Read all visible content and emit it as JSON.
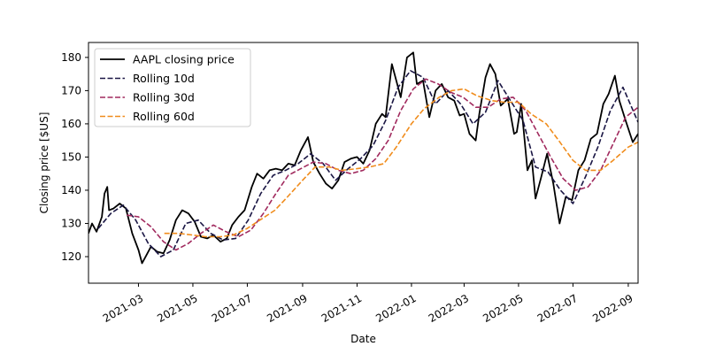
{
  "chart_data": {
    "type": "line",
    "title": "",
    "xlabel": "Date",
    "ylabel": "Closing price [$US]",
    "x_ticks": [
      "2021-03",
      "2021-05",
      "2021-07",
      "2021-09",
      "2021-11",
      "2022-01",
      "2022-03",
      "2022-05",
      "2022-07",
      "2022-09"
    ],
    "y_ticks": [
      120,
      130,
      140,
      150,
      160,
      170,
      180
    ],
    "xlim": [
      "2021-01-04",
      "2022-09-12"
    ],
    "ylim": [
      112,
      184.5
    ],
    "grid": false,
    "legend_position": "upper-left",
    "series": [
      {
        "name": "AAPL closing price",
        "color": "#000000",
        "style": "solid",
        "points": [
          [
            "2021-01-04",
            127.0
          ],
          [
            "2021-01-08",
            130.0
          ],
          [
            "2021-01-13",
            127.5
          ],
          [
            "2021-01-19",
            132.0
          ],
          [
            "2021-01-22",
            139.0
          ],
          [
            "2021-01-25",
            141.0
          ],
          [
            "2021-01-27",
            134.0
          ],
          [
            "2021-02-01",
            134.5
          ],
          [
            "2021-02-08",
            136.0
          ],
          [
            "2021-02-15",
            134.5
          ],
          [
            "2021-02-22",
            127.0
          ],
          [
            "2021-03-01",
            122.0
          ],
          [
            "2021-03-05",
            118.0
          ],
          [
            "2021-03-08",
            119.5
          ],
          [
            "2021-03-15",
            123.0
          ],
          [
            "2021-03-22",
            121.5
          ],
          [
            "2021-03-29",
            121.0
          ],
          [
            "2021-04-05",
            125.0
          ],
          [
            "2021-04-12",
            131.0
          ],
          [
            "2021-04-19",
            134.0
          ],
          [
            "2021-04-26",
            133.0
          ],
          [
            "2021-05-03",
            130.5
          ],
          [
            "2021-05-10",
            126.0
          ],
          [
            "2021-05-17",
            125.5
          ],
          [
            "2021-05-24",
            126.5
          ],
          [
            "2021-06-01",
            124.5
          ],
          [
            "2021-06-08",
            125.5
          ],
          [
            "2021-06-14",
            129.5
          ],
          [
            "2021-06-21",
            132.0
          ],
          [
            "2021-06-28",
            134.0
          ],
          [
            "2021-07-06",
            141.0
          ],
          [
            "2021-07-12",
            145.0
          ],
          [
            "2021-07-19",
            143.5
          ],
          [
            "2021-07-26",
            146.0
          ],
          [
            "2021-08-02",
            146.5
          ],
          [
            "2021-08-09",
            146.0
          ],
          [
            "2021-08-16",
            148.0
          ],
          [
            "2021-08-23",
            147.5
          ],
          [
            "2021-08-30",
            152.0
          ],
          [
            "2021-09-07",
            156.0
          ],
          [
            "2021-09-13",
            148.5
          ],
          [
            "2021-09-20",
            145.0
          ],
          [
            "2021-09-27",
            142.0
          ],
          [
            "2021-10-04",
            140.5
          ],
          [
            "2021-10-11",
            143.0
          ],
          [
            "2021-10-18",
            148.5
          ],
          [
            "2021-10-25",
            149.5
          ],
          [
            "2021-11-01",
            150.0
          ],
          [
            "2021-11-08",
            148.0
          ],
          [
            "2021-11-15",
            152.0
          ],
          [
            "2021-11-22",
            160.0
          ],
          [
            "2021-11-29",
            163.0
          ],
          [
            "2021-12-03",
            162.0
          ],
          [
            "2021-12-10",
            178.0
          ],
          [
            "2021-12-16",
            172.0
          ],
          [
            "2021-12-20",
            168.0
          ],
          [
            "2021-12-27",
            180.0
          ],
          [
            "2022-01-03",
            181.5
          ],
          [
            "2022-01-07",
            172.0
          ],
          [
            "2022-01-14",
            173.0
          ],
          [
            "2022-01-21",
            162.0
          ],
          [
            "2022-01-28",
            170.0
          ],
          [
            "2022-02-04",
            172.0
          ],
          [
            "2022-02-11",
            168.0
          ],
          [
            "2022-02-18",
            167.0
          ],
          [
            "2022-02-24",
            162.5
          ],
          [
            "2022-03-01",
            163.0
          ],
          [
            "2022-03-07",
            157.0
          ],
          [
            "2022-03-14",
            155.0
          ],
          [
            "2022-03-18",
            163.0
          ],
          [
            "2022-03-25",
            174.0
          ],
          [
            "2022-03-30",
            178.0
          ],
          [
            "2022-04-05",
            175.0
          ],
          [
            "2022-04-11",
            165.5
          ],
          [
            "2022-04-19",
            167.5
          ],
          [
            "2022-04-26",
            157.0
          ],
          [
            "2022-04-29",
            157.5
          ],
          [
            "2022-05-04",
            166.0
          ],
          [
            "2022-05-11",
            146.0
          ],
          [
            "2022-05-16",
            149.0
          ],
          [
            "2022-05-20",
            137.5
          ],
          [
            "2022-05-26",
            143.5
          ],
          [
            "2022-06-02",
            151.0
          ],
          [
            "2022-06-09",
            142.0
          ],
          [
            "2022-06-16",
            130.0
          ],
          [
            "2022-06-23",
            138.0
          ],
          [
            "2022-06-30",
            137.0
          ],
          [
            "2022-07-07",
            146.0
          ],
          [
            "2022-07-14",
            149.0
          ],
          [
            "2022-07-21",
            155.5
          ],
          [
            "2022-07-28",
            157.0
          ],
          [
            "2022-08-04",
            166.0
          ],
          [
            "2022-08-10",
            169.0
          ],
          [
            "2022-08-17",
            174.5
          ],
          [
            "2022-08-22",
            167.0
          ],
          [
            "2022-08-29",
            161.0
          ],
          [
            "2022-09-06",
            154.5
          ],
          [
            "2022-09-12",
            157.0
          ]
        ]
      },
      {
        "name": "Rolling 10d",
        "color": "#1a1644",
        "style": "dashed",
        "points": [
          [
            "2021-01-15",
            128.5
          ],
          [
            "2021-01-29",
            133.0
          ],
          [
            "2021-02-12",
            135.5
          ],
          [
            "2021-02-26",
            131.0
          ],
          [
            "2021-03-12",
            124.0
          ],
          [
            "2021-03-26",
            120.0
          ],
          [
            "2021-04-09",
            122.0
          ],
          [
            "2021-04-23",
            130.0
          ],
          [
            "2021-05-07",
            131.0
          ],
          [
            "2021-05-21",
            127.0
          ],
          [
            "2021-06-04",
            125.0
          ],
          [
            "2021-06-18",
            125.5
          ],
          [
            "2021-07-02",
            131.0
          ],
          [
            "2021-07-16",
            139.0
          ],
          [
            "2021-07-30",
            144.5
          ],
          [
            "2021-08-13",
            146.0
          ],
          [
            "2021-08-27",
            148.0
          ],
          [
            "2021-09-10",
            151.0
          ],
          [
            "2021-09-24",
            148.0
          ],
          [
            "2021-10-08",
            143.0
          ],
          [
            "2021-10-22",
            146.5
          ],
          [
            "2021-11-05",
            149.5
          ],
          [
            "2021-11-19",
            153.5
          ],
          [
            "2021-12-03",
            161.0
          ],
          [
            "2021-12-17",
            171.0
          ],
          [
            "2021-12-31",
            176.0
          ],
          [
            "2022-01-14",
            174.0
          ],
          [
            "2022-01-28",
            166.0
          ],
          [
            "2022-02-11",
            170.0
          ],
          [
            "2022-02-25",
            166.0
          ],
          [
            "2022-03-11",
            160.0
          ],
          [
            "2022-03-25",
            163.5
          ],
          [
            "2022-04-08",
            173.0
          ],
          [
            "2022-04-22",
            167.0
          ],
          [
            "2022-05-06",
            161.0
          ],
          [
            "2022-05-20",
            147.0
          ],
          [
            "2022-06-03",
            145.5
          ],
          [
            "2022-06-17",
            140.0
          ],
          [
            "2022-07-01",
            136.0
          ],
          [
            "2022-07-15",
            144.0
          ],
          [
            "2022-07-29",
            153.0
          ],
          [
            "2022-08-12",
            164.0
          ],
          [
            "2022-08-26",
            171.0
          ],
          [
            "2022-09-12",
            160.5
          ]
        ]
      },
      {
        "name": "Rolling 30d",
        "color": "#a12a5e",
        "style": "dashed",
        "points": [
          [
            "2021-02-16",
            132.5
          ],
          [
            "2021-03-01",
            132.0
          ],
          [
            "2021-03-15",
            129.0
          ],
          [
            "2021-03-29",
            124.5
          ],
          [
            "2021-04-12",
            122.0
          ],
          [
            "2021-04-26",
            124.0
          ],
          [
            "2021-05-10",
            127.0
          ],
          [
            "2021-05-24",
            129.5
          ],
          [
            "2021-06-07",
            127.5
          ],
          [
            "2021-06-21",
            126.0
          ],
          [
            "2021-07-05",
            128.0
          ],
          [
            "2021-07-19",
            133.0
          ],
          [
            "2021-08-02",
            139.0
          ],
          [
            "2021-08-16",
            144.5
          ],
          [
            "2021-08-30",
            146.5
          ],
          [
            "2021-09-13",
            148.5
          ],
          [
            "2021-09-27",
            148.0
          ],
          [
            "2021-10-11",
            146.0
          ],
          [
            "2021-10-25",
            145.0
          ],
          [
            "2021-11-08",
            146.0
          ],
          [
            "2021-11-22",
            149.5
          ],
          [
            "2021-12-06",
            155.0
          ],
          [
            "2021-12-20",
            164.0
          ],
          [
            "2022-01-03",
            170.5
          ],
          [
            "2022-01-17",
            173.5
          ],
          [
            "2022-01-31",
            172.0
          ],
          [
            "2022-02-14",
            169.5
          ],
          [
            "2022-02-28",
            168.0
          ],
          [
            "2022-03-14",
            165.0
          ],
          [
            "2022-03-28",
            165.0
          ],
          [
            "2022-04-11",
            167.5
          ],
          [
            "2022-04-25",
            168.0
          ],
          [
            "2022-05-09",
            164.0
          ],
          [
            "2022-05-23",
            157.0
          ],
          [
            "2022-06-06",
            150.0
          ],
          [
            "2022-06-20",
            143.5
          ],
          [
            "2022-07-04",
            140.0
          ],
          [
            "2022-07-18",
            141.0
          ],
          [
            "2022-08-01",
            146.0
          ],
          [
            "2022-08-15",
            154.0
          ],
          [
            "2022-08-29",
            162.0
          ],
          [
            "2022-09-12",
            165.0
          ]
        ]
      },
      {
        "name": "Rolling 60d",
        "color": "#f08c1c",
        "style": "dashed",
        "points": [
          [
            "2021-03-30",
            127.0
          ],
          [
            "2021-04-15",
            127.0
          ],
          [
            "2021-05-01",
            126.5
          ],
          [
            "2021-05-15",
            126.0
          ],
          [
            "2021-06-01",
            126.0
          ],
          [
            "2021-06-15",
            126.5
          ],
          [
            "2021-07-01",
            128.5
          ],
          [
            "2021-07-15",
            131.0
          ],
          [
            "2021-08-01",
            134.0
          ],
          [
            "2021-08-15",
            138.0
          ],
          [
            "2021-09-01",
            143.0
          ],
          [
            "2021-09-15",
            147.0
          ],
          [
            "2021-10-01",
            147.0
          ],
          [
            "2021-10-15",
            146.0
          ],
          [
            "2021-11-01",
            146.5
          ],
          [
            "2021-11-15",
            147.0
          ],
          [
            "2021-12-01",
            148.0
          ],
          [
            "2021-12-15",
            153.0
          ],
          [
            "2022-01-01",
            160.0
          ],
          [
            "2022-01-15",
            164.5
          ],
          [
            "2022-02-01",
            168.0
          ],
          [
            "2022-02-15",
            170.0
          ],
          [
            "2022-03-01",
            170.5
          ],
          [
            "2022-03-15",
            168.5
          ],
          [
            "2022-04-01",
            167.0
          ],
          [
            "2022-04-15",
            166.5
          ],
          [
            "2022-05-01",
            166.5
          ],
          [
            "2022-05-15",
            163.0
          ],
          [
            "2022-06-01",
            160.0
          ],
          [
            "2022-06-15",
            155.0
          ],
          [
            "2022-07-01",
            149.0
          ],
          [
            "2022-07-15",
            146.0
          ],
          [
            "2022-08-01",
            146.0
          ],
          [
            "2022-08-15",
            149.0
          ],
          [
            "2022-09-01",
            153.0
          ],
          [
            "2022-09-12",
            154.5
          ]
        ]
      }
    ]
  }
}
